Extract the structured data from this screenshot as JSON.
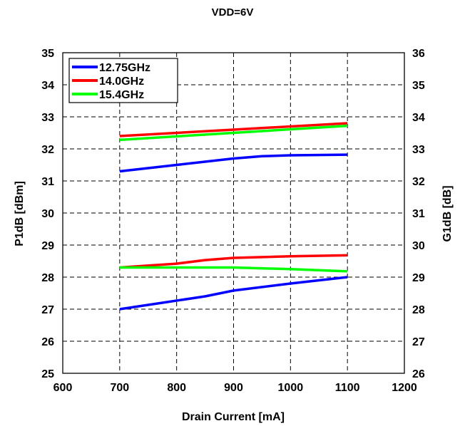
{
  "chart_data": {
    "type": "line",
    "title": "VDD=6V",
    "xlabel": "Drain Current  [mA]",
    "ylabel": "P1dB  [dBm]",
    "y2label": "G1dB  [dB]",
    "xlim": [
      600,
      1200
    ],
    "ylim": [
      25,
      35
    ],
    "y2lim": [
      26,
      36
    ],
    "xticks": [
      600,
      700,
      800,
      900,
      1000,
      1100,
      1200
    ],
    "yticks": [
      25,
      26,
      27,
      28,
      29,
      30,
      31,
      32,
      33,
      34,
      35
    ],
    "y2ticks": [
      26,
      27,
      28,
      29,
      30,
      31,
      32,
      33,
      34,
      35,
      36
    ],
    "grid": true,
    "legend_position": "top-left",
    "series": [
      {
        "name": "12.75GHz",
        "axis": "right",
        "color": "#0000ff",
        "x": [
          700,
          800,
          900,
          950,
          1000,
          1100
        ],
        "y": [
          32.3,
          32.5,
          32.7,
          32.77,
          32.8,
          32.82
        ]
      },
      {
        "name": "14.0GHz",
        "axis": "right",
        "color": "#ff0000",
        "x": [
          700,
          900,
          1100
        ],
        "y": [
          33.4,
          33.6,
          33.8
        ]
      },
      {
        "name": "15.4GHz",
        "axis": "right",
        "color": "#00ff00",
        "x": [
          700,
          900,
          1100
        ],
        "y": [
          33.28,
          33.5,
          33.72
        ]
      },
      {
        "name": "12.75GHz",
        "axis": "left",
        "color": "#0000ff",
        "in_legend": false,
        "x": [
          700,
          850,
          900,
          1000,
          1100
        ],
        "y": [
          27.0,
          27.4,
          27.58,
          27.8,
          28.0
        ]
      },
      {
        "name": "14.0GHz",
        "axis": "left",
        "color": "#ff0000",
        "in_legend": false,
        "x": [
          700,
          800,
          850,
          900,
          1000,
          1100
        ],
        "y": [
          28.3,
          28.42,
          28.53,
          28.6,
          28.65,
          28.68
        ]
      },
      {
        "name": "15.4GHz",
        "axis": "left",
        "color": "#00ff00",
        "in_legend": false,
        "x": [
          700,
          900,
          1000,
          1100
        ],
        "y": [
          28.3,
          28.3,
          28.25,
          28.18
        ]
      }
    ]
  }
}
